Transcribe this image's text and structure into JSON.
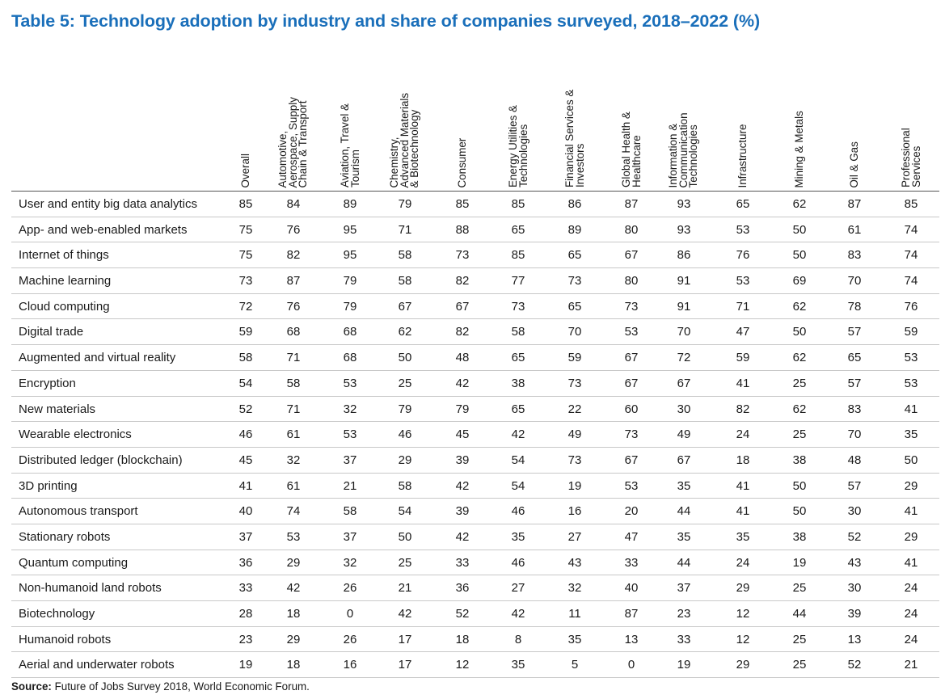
{
  "title": "Table 5: Technology adoption by industry and share of companies surveyed, 2018–2022 (%)",
  "columns": [
    [
      "Overall"
    ],
    [
      "Automotive,",
      "Aerospace, Supply",
      "Chain & Transport"
    ],
    [
      "Aviation, Travel &",
      "Tourism"
    ],
    [
      "Chemistry,",
      "Advanced Materials",
      "& Biotechnology"
    ],
    [
      "Consumer"
    ],
    [
      "Energy Utilities &",
      "Technologies"
    ],
    [
      "Financial Services &",
      "Investors"
    ],
    [
      "Global Health &",
      "Healthcare"
    ],
    [
      "Information &",
      "Communication",
      "Technologies"
    ],
    [
      "Infrastructure"
    ],
    [
      "Mining & Metals"
    ],
    [
      "Oil & Gas"
    ],
    [
      "Professional",
      "Services"
    ]
  ],
  "rows": [
    {
      "label": "User and entity big data analytics",
      "values": [
        "85",
        "84",
        "89",
        "79",
        "85",
        "85",
        "86",
        "87",
        "93",
        "65",
        "62",
        "87",
        "85"
      ]
    },
    {
      "label": "App- and web-enabled markets",
      "values": [
        "75",
        "76",
        "95",
        "71",
        "88",
        "65",
        "89",
        "80",
        "93",
        "53",
        "50",
        "61",
        "74"
      ]
    },
    {
      "label": "Internet of things",
      "values": [
        "75",
        "82",
        "95",
        "58",
        "73",
        "85",
        "65",
        "67",
        "86",
        "76",
        "50",
        "83",
        "74"
      ]
    },
    {
      "label": "Machine learning",
      "values": [
        "73",
        "87",
        "79",
        "58",
        "82",
        "77",
        "73",
        "80",
        "91",
        "53",
        "69",
        "70",
        "74"
      ]
    },
    {
      "label": "Cloud computing",
      "values": [
        "72",
        "76",
        "79",
        "67",
        "67",
        "73",
        "65",
        "73",
        "91",
        "71",
        "62",
        "78",
        "76"
      ]
    },
    {
      "label": "Digital trade",
      "values": [
        "59",
        "68",
        "68",
        "62",
        "82",
        "58",
        "70",
        "53",
        "70",
        "47",
        "50",
        "57",
        "59"
      ]
    },
    {
      "label": "Augmented and virtual reality",
      "values": [
        "58",
        "71",
        "68",
        "50",
        "48",
        "65",
        "59",
        "67",
        "72",
        "59",
        "62",
        "65",
        "53"
      ]
    },
    {
      "label": "Encryption",
      "values": [
        "54",
        "58",
        "53",
        "25",
        "42",
        "38",
        "73",
        "67",
        "67",
        "41",
        "25",
        "57",
        "53"
      ]
    },
    {
      "label": "New materials",
      "values": [
        "52",
        "71",
        "32",
        "79",
        "79",
        "65",
        "22",
        "60",
        "30",
        "82",
        "62",
        "83",
        "41"
      ]
    },
    {
      "label": "Wearable electronics",
      "values": [
        "46",
        "61",
        "53",
        "46",
        "45",
        "42",
        "49",
        "73",
        "49",
        "24",
        "25",
        "70",
        "35"
      ]
    },
    {
      "label": "Distributed ledger (blockchain)",
      "values": [
        "45",
        "32",
        "37",
        "29",
        "39",
        "54",
        "73",
        "67",
        "67",
        "18",
        "38",
        "48",
        "50"
      ]
    },
    {
      "label": "3D printing",
      "values": [
        "41",
        "61",
        "21",
        "58",
        "42",
        "54",
        "19",
        "53",
        "35",
        "41",
        "50",
        "57",
        "29"
      ]
    },
    {
      "label": "Autonomous transport",
      "values": [
        "40",
        "74",
        "58",
        "54",
        "39",
        "46",
        "16",
        "20",
        "44",
        "41",
        "50",
        "30",
        "41"
      ]
    },
    {
      "label": "Stationary robots",
      "values": [
        "37",
        "53",
        "37",
        "50",
        "42",
        "35",
        "27",
        "47",
        "35",
        "35",
        "38",
        "52",
        "29"
      ]
    },
    {
      "label": "Quantum computing",
      "values": [
        "36",
        "29",
        "32",
        "25",
        "33",
        "46",
        "43",
        "33",
        "44",
        "24",
        "19",
        "43",
        "41"
      ]
    },
    {
      "label": "Non-humanoid land robots",
      "values": [
        "33",
        "42",
        "26",
        "21",
        "36",
        "27",
        "32",
        "40",
        "37",
        "29",
        "25",
        "30",
        "24"
      ]
    },
    {
      "label": "Biotechnology",
      "values": [
        "28",
        "18",
        "0",
        "42",
        "52",
        "42",
        "11",
        "87",
        "23",
        "12",
        "44",
        "39",
        "24"
      ]
    },
    {
      "label": "Humanoid robots",
      "values": [
        "23",
        "29",
        "26",
        "17",
        "18",
        "8",
        "35",
        "13",
        "33",
        "12",
        "25",
        "13",
        "24"
      ]
    },
    {
      "label": "Aerial and underwater robots",
      "values": [
        "19",
        "18",
        "16",
        "17",
        "12",
        "35",
        "5",
        "0",
        "19",
        "29",
        "25",
        "52",
        "21"
      ]
    }
  ],
  "source": {
    "label": "Source:",
    "text": " Future of Jobs Survey 2018, World Economic Forum."
  }
}
